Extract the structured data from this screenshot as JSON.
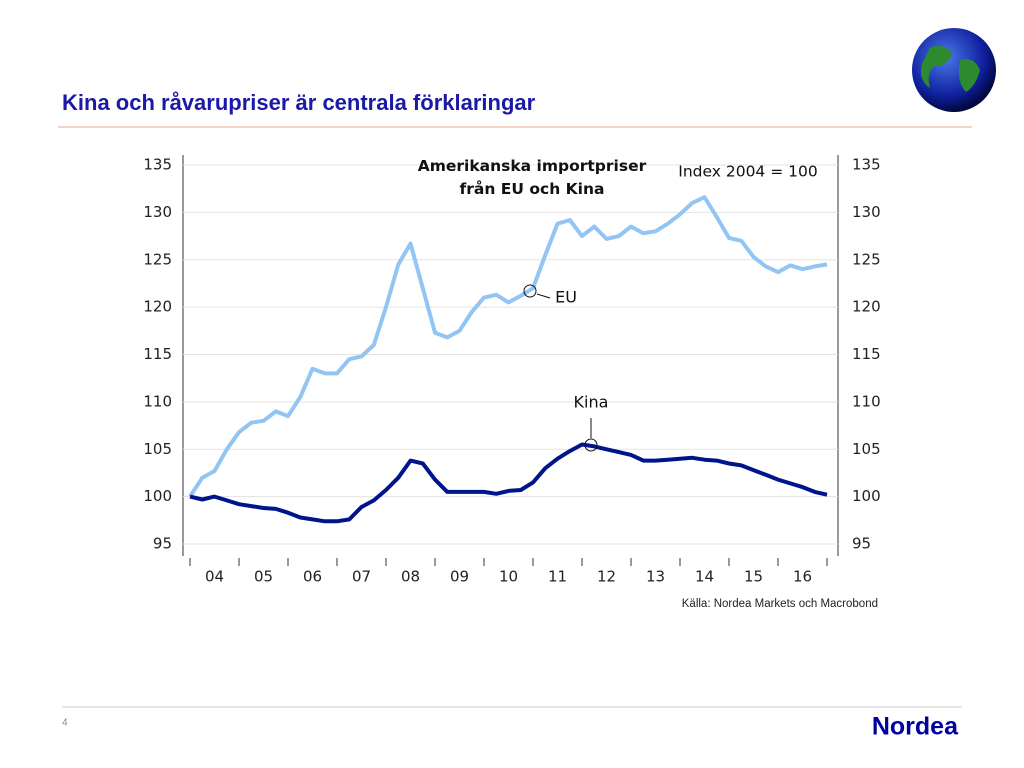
{
  "slide": {
    "title": "Kina och råvarupriser är centrala förklaringar",
    "source": "Källa: Nordea Markets och Macrobond",
    "page_number": "4",
    "logo": "Nordea"
  },
  "chart_data": {
    "type": "line",
    "title": "Amerikanska importpriser från EU och Kina",
    "subtitle": "Index 2004 = 100",
    "x": [
      2004,
      2004.25,
      2004.5,
      2004.75,
      2005,
      2005.25,
      2005.5,
      2005.75,
      2006,
      2006.25,
      2006.5,
      2006.75,
      2007,
      2007.25,
      2007.5,
      2007.75,
      2008,
      2008.25,
      2008.5,
      2008.75,
      2009,
      2009.25,
      2009.5,
      2009.75,
      2010,
      2010.25,
      2010.5,
      2010.75,
      2011,
      2011.25,
      2011.5,
      2011.75,
      2012,
      2012.25,
      2012.5,
      2012.75,
      2013,
      2013.25,
      2013.5,
      2013.75,
      2014,
      2014.25,
      2014.5,
      2014.75,
      2015,
      2015.25,
      2015.5,
      2015.75,
      2016,
      2016.25,
      2016.5,
      2016.75,
      2017
    ],
    "xlim": [
      2004,
      2017
    ],
    "xticks": [
      {
        "value": 2004.5,
        "label": "04"
      },
      {
        "value": 2005.5,
        "label": "05"
      },
      {
        "value": 2006.5,
        "label": "06"
      },
      {
        "value": 2007.5,
        "label": "07"
      },
      {
        "value": 2008.5,
        "label": "08"
      },
      {
        "value": 2009.5,
        "label": "09"
      },
      {
        "value": 2010.5,
        "label": "10"
      },
      {
        "value": 2011.5,
        "label": "11"
      },
      {
        "value": 2012.5,
        "label": "12"
      },
      {
        "value": 2013.5,
        "label": "13"
      },
      {
        "value": 2014.5,
        "label": "14"
      },
      {
        "value": 2015.5,
        "label": "15"
      },
      {
        "value": 2016.5,
        "label": "16"
      }
    ],
    "ylim": [
      95,
      135
    ],
    "yticks": [
      95,
      100,
      105,
      110,
      115,
      120,
      125,
      130,
      135
    ],
    "grid": true,
    "series": [
      {
        "name": "EU",
        "color": "#92c5f3",
        "values": [
          100,
          102,
          102.7,
          105,
          106.8,
          107.8,
          108,
          109,
          108.5,
          110.5,
          113.5,
          113,
          113,
          114.5,
          114.8,
          116,
          120,
          124.5,
          126.7,
          122,
          117.3,
          116.8,
          117.5,
          119.5,
          121,
          121.3,
          120.5,
          121.2,
          122,
          125.5,
          128.8,
          129.2,
          127.5,
          128.5,
          127.2,
          127.5,
          128.5,
          127.8,
          128,
          128.8,
          129.8,
          131,
          131.6,
          129.5,
          127.3,
          127,
          125.3,
          124.3,
          123.7,
          124.4,
          124,
          124.3,
          124.5
        ]
      },
      {
        "name": "Kina",
        "color": "#00148c",
        "values": [
          100,
          99.7,
          100,
          99.6,
          99.2,
          99,
          98.8,
          98.7,
          98.3,
          97.8,
          97.6,
          97.4,
          97.4,
          97.6,
          98.9,
          99.6,
          100.7,
          102,
          103.8,
          103.5,
          101.8,
          100.5,
          100.5,
          100.5,
          100.5,
          100.3,
          100.6,
          100.7,
          101.5,
          103,
          104,
          104.8,
          105.5,
          105.3,
          105,
          104.7,
          104.4,
          103.8,
          103.8,
          103.9,
          104,
          104.1,
          103.9,
          103.8,
          103.5,
          103.3,
          102.8,
          102.3,
          101.8,
          101.4,
          101,
          100.5,
          100.2
        ]
      }
    ]
  }
}
